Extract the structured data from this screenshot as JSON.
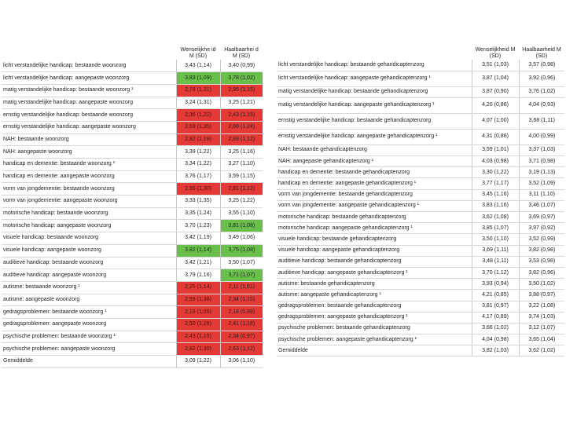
{
  "left_table": {
    "headers": [
      "Wenselijkhe id M (SD)",
      "Haalbaarhei d M (SD)"
    ],
    "rows": [
      {
        "label": "licht verstandelijke handicap: bestaande woonzorg",
        "w": "3,43 (1,14)",
        "h": "3,40 (0,99)",
        "wc": "",
        "hc": ""
      },
      {
        "label": "licht verstandelijke handicap: aangepaste woonzorg",
        "w": "3,83 (1,09)",
        "h": "3,78 (1,02)",
        "wc": "g",
        "hc": "g"
      },
      {
        "label": "matig verstandelijke handicap: bestaande woonzorg ¹",
        "w": "2,78 (1,31)",
        "h": "2,95 (1,15)",
        "wc": "r",
        "hc": "r"
      },
      {
        "label": "matig verstandelijke handicap: aangepaste woonzorg",
        "w": "3,24 (1,31)",
        "h": "3,25 (1,21)",
        "wc": "",
        "hc": ""
      },
      {
        "label": "ernstig verstandelijke handicap: bestaande woonzorg",
        "w": "2,36 (1,22)",
        "h": "2,43 (1,19)",
        "wc": "r",
        "hc": "r"
      },
      {
        "label": "ernstig verstandelijke handicap: aangepaste woonzorg",
        "w": "2,69 (1,35)",
        "h": "2,66 (1,24)",
        "wc": "r",
        "hc": "r"
      },
      {
        "label": "NAH: bestaande woonzorg",
        "w": "2,82 (1,19)",
        "h": "2,83 (1,12)",
        "wc": "r",
        "hc": "r"
      },
      {
        "label": "NAH: aangepaste woonzorg",
        "w": "3,39 (1,22)",
        "h": "3,25 (1,16)",
        "wc": "",
        "hc": ""
      },
      {
        "label": "handicap en dementie: bestaande woonzorg ¹",
        "w": "3,34 (1,22)",
        "h": "3,27 (1,10)",
        "wc": "",
        "hc": ""
      },
      {
        "label": "handicap en dementie: aangepaste woonzorg",
        "w": "3,76 (1,17)",
        "h": "3,59 (1,15)",
        "wc": "",
        "hc": ""
      },
      {
        "label": "vorm van jongdementie: bestaande woonzorg",
        "w": "2,95 (1,30)",
        "h": "2,91 (1,12)",
        "wc": "r",
        "hc": "r"
      },
      {
        "label": "vorm van jongdementie: aangepaste woonzorg",
        "w": "3,33 (1,35)",
        "h": "3,25 (1,22)",
        "wc": "",
        "hc": ""
      },
      {
        "label": "motorische handicap: bestaande woonzorg",
        "w": "3,35 (1,24)",
        "h": "3,55 (1,10)",
        "wc": "",
        "hc": ""
      },
      {
        "label": "motorische handicap: aangepaste woonzorg",
        "w": "3,70 (1,23)",
        "h": "3,81 (1,08)",
        "wc": "",
        "hc": "g"
      },
      {
        "label": "visuele handicap: bestaande woonzorg",
        "w": "3,42 (1,19)",
        "h": "3,49 (1,06)",
        "wc": "",
        "hc": ""
      },
      {
        "label": "visuele handicap: aangepaste woonzorg",
        "w": "3,82 (1,14)",
        "h": "3,75 (1,08)",
        "wc": "g",
        "hc": "g"
      },
      {
        "label": "auditieve handicap: bestaande woonzorg",
        "w": "3,42 (1,21)",
        "h": "3,50 (1,07)",
        "wc": "",
        "hc": ""
      },
      {
        "label": "auditieve handicap: aangepaste woonzorg",
        "w": "3,79 (1,16)",
        "h": "3,71 (1,07)",
        "wc": "",
        "hc": "g"
      },
      {
        "label": "autisme: bestaande woonzorg ¹",
        "w": "2,25 (1,14)",
        "h": "2,11 (1,01)",
        "wc": "r",
        "hc": "r"
      },
      {
        "label": "autisme: aangepaste woonzorg",
        "w": "2,59 (1,38)",
        "h": "2,34 (1,15)",
        "wc": "r",
        "hc": "r"
      },
      {
        "label": "gedragsproblemen: bestaande woonzorg ¹",
        "w": "2,19 (1,09)",
        "h": "2,18 (0,99)",
        "wc": "r",
        "hc": "r"
      },
      {
        "label": "gedragsproblemen: aangepaste woonzorg",
        "w": "2,50 (1,28)",
        "h": "2,41 (1,18)",
        "wc": "r",
        "hc": "r"
      },
      {
        "label": "psychische problemen: bestaande woonzorg ¹",
        "w": "2,43 (1,15)",
        "h": "2,34 (0,97)",
        "wc": "r",
        "hc": "r"
      },
      {
        "label": "psychische problemen: aangepaste woonzorg",
        "w": "2,82 (1,30)",
        "h": "2,63 (1,12)",
        "wc": "r",
        "hc": "r"
      },
      {
        "label": "Gemiddelde",
        "w": "3,09 (1,22)",
        "h": "3,06 (1,10)",
        "wc": "",
        "hc": ""
      }
    ]
  },
  "right_table": {
    "headers": [
      "Wenselijkheid M (SD)",
      "Haalbaarheid M (SD)"
    ],
    "rows": [
      {
        "label": "licht verstandelijke handicap: bestaande gehandicaptenzorg",
        "w": "3,51 (1,03)",
        "h": "3,57 (0,98)",
        "wc": "",
        "hc": ""
      },
      {
        "label": "licht verstandelijke handicap: aangepaste gehandicaptenzorg ¹",
        "w": "3,87 (1,04)",
        "h": "3,92 (0,96)",
        "wc": "",
        "hc": ""
      },
      {
        "label": "matig verstandelijke handicap: bestaande gehandicaptenzorg",
        "w": "3,87 (0,90)",
        "h": "3,76 (1,02)",
        "wc": "",
        "hc": ""
      },
      {
        "label": "matig verstandelijke handicap: aangepaste gehandicaptenzorg ¹",
        "w": "4,20 (0,86)",
        "h": "4,04 (0,93)",
        "wc": "",
        "hc": ""
      },
      {
        "label": "ernstig verstandelijke handicap: bestaande gehandicaptenzorg",
        "w": "4,07 (1,00)",
        "h": "3,68 (1,11)",
        "wc": "",
        "hc": ""
      },
      {
        "label": "ernstig verstandelijke handicap: aangepaste gehandicaptenzorg ¹",
        "w": "4,31 (0,86)",
        "h": "4,00 (0,99)",
        "wc": "",
        "hc": ""
      },
      {
        "label": "NAH: bestaande gehandicaptenzorg",
        "w": "3,59 (1,01)",
        "h": "3,37 (1,03)",
        "wc": "",
        "hc": ""
      },
      {
        "label": "NAH: aangepaste gehandicaptenzorg ¹",
        "w": "4,03 (0,98)",
        "h": "3,71 (0,98)",
        "wc": "",
        "hc": ""
      },
      {
        "label": "handicap en dementie: bestaande gehandicaptenzorg",
        "w": "3,30 (1,22)",
        "h": "3,19 (1,13)",
        "wc": "",
        "hc": ""
      },
      {
        "label": "handicap en dementie: aangepaste gehandicaptenzorg ¹",
        "w": "3,77 (1,17)",
        "h": "3,52 (1,09)",
        "wc": "",
        "hc": ""
      },
      {
        "label": "vorm van jongdementie: bestaande gehandicaptenzorg",
        "w": "3,45 (1,16)",
        "h": "3,11 (1,10)",
        "wc": "",
        "hc": ""
      },
      {
        "label": "vorm van jongdementie: aangepaste gehandicaptenzorg ¹",
        "w": "3,83 (1,16)",
        "h": "3,46 (1,07)",
        "wc": "",
        "hc": ""
      },
      {
        "label": "motorische handicap: bestaande gehandicaptenzorg",
        "w": "3,62 (1,08)",
        "h": "3,69 (0,97)",
        "wc": "",
        "hc": ""
      },
      {
        "label": "motorische handicap: aangepaste gehandicaptenzorg ¹",
        "w": "3,85 (1,07)",
        "h": "3,97 (0,92)",
        "wc": "",
        "hc": ""
      },
      {
        "label": "visuele handicap: bestaande gehandicaptenzorg",
        "w": "3,50 (1,10)",
        "h": "3,52 (0,99)",
        "wc": "",
        "hc": ""
      },
      {
        "label": "visuele handicap: aangepaste gehandicaptenzorg",
        "w": "3,69 (1,11)",
        "h": "3,82 (0,98)",
        "wc": "",
        "hc": ""
      },
      {
        "label": "auditieve handicap: bestaande gehandicaptenzorg",
        "w": "3,48 (1,11)",
        "h": "3,53 (0,98)",
        "wc": "",
        "hc": ""
      },
      {
        "label": "auditieve handicap: aangepaste gehandicaptenzorg ¹",
        "w": "3,70 (1,12)",
        "h": "3,82 (0,96)",
        "wc": "",
        "hc": ""
      },
      {
        "label": "autisme: bestaande gehandicaptenzorg",
        "w": "3,93 (0,94)",
        "h": "3,50 (1,02)",
        "wc": "",
        "hc": ""
      },
      {
        "label": "autisme: aangepaste gehandicaptenzorg ¹",
        "w": "4,21 (0,85)",
        "h": "3,88 (0,97)",
        "wc": "",
        "hc": ""
      },
      {
        "label": "gedragsproblemen: bestaande gehandicaptenzorg",
        "w": "3,81 (0,97)",
        "h": "3,22 (1,08)",
        "wc": "",
        "hc": ""
      },
      {
        "label": "gedragsproblemen: aangepaste gehandicaptenzorg ¹",
        "w": "4,17 (0,89)",
        "h": "3,74 (1,03)",
        "wc": "",
        "hc": ""
      },
      {
        "label": "psychische problemen: bestaande gehandicaptenzorg",
        "w": "3,66 (1,02)",
        "h": "3,12 (1,07)",
        "wc": "",
        "hc": ""
      },
      {
        "label": "psychische problemen: aangepaste gehandicaptenzorg ¹",
        "w": "4,04 (0,98)",
        "h": "3,65 (1,04)",
        "wc": "",
        "hc": ""
      },
      {
        "label": "Gemiddelde",
        "w": "3,82 (1,03)",
        "h": "3,62 (1,02)",
        "wc": "",
        "hc": ""
      }
    ]
  }
}
